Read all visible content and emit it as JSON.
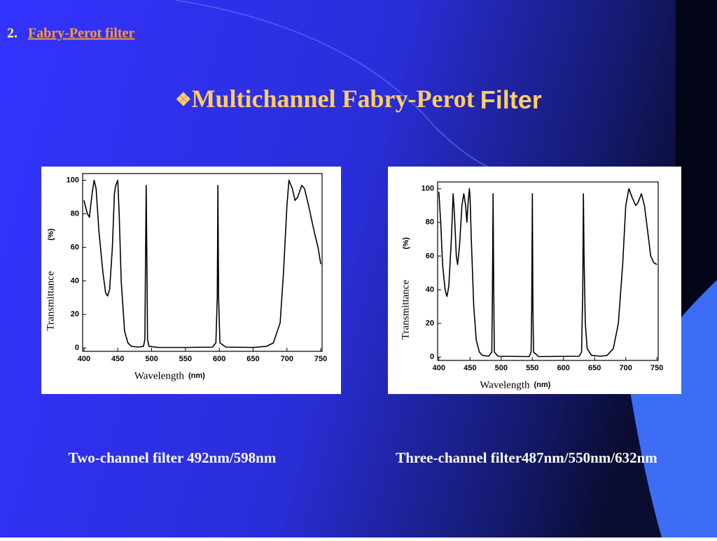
{
  "header": {
    "number": "2.",
    "link": "Fabry-Perot filter"
  },
  "title": {
    "marker": "❖",
    "main": "Multichannel Fabry-Perot",
    "tail": "Filter"
  },
  "captions": [
    "Two-channel filter 492nm/598nm",
    "Three-channel filter487nm/550nm/632nm"
  ],
  "chart_data": [
    {
      "type": "line",
      "xlabel": "Wavelength",
      "xunit": "(nm)",
      "ylabel": "Transmittance",
      "yunit": "(%)",
      "xlim": [
        398,
        752
      ],
      "ylim": [
        -2,
        104
      ],
      "xticks": [
        400,
        450,
        500,
        550,
        600,
        650,
        700,
        750
      ],
      "yticks": [
        0,
        20,
        40,
        60,
        80,
        100
      ],
      "x": [
        400,
        405,
        408,
        412,
        415,
        418,
        422,
        428,
        432,
        435,
        438,
        442,
        445,
        447,
        450,
        452,
        455,
        460,
        465,
        470,
        480,
        488,
        490,
        491,
        492,
        493,
        494,
        496,
        510,
        550,
        590,
        595,
        597,
        598,
        599,
        601,
        610,
        650,
        670,
        680,
        690,
        695,
        700,
        703,
        708,
        712,
        716,
        722,
        726,
        732,
        740,
        746,
        750
      ],
      "series": [
        {
          "color": "#000000",
          "values": [
            88,
            80,
            78,
            92,
            100,
            95,
            70,
            45,
            33,
            31,
            35,
            60,
            92,
            97,
            100,
            80,
            40,
            10,
            3,
            1,
            0.5,
            1,
            5,
            50,
            97,
            50,
            5,
            1,
            0.3,
            0.3,
            0.5,
            3,
            30,
            97,
            30,
            3,
            0.5,
            0.3,
            1,
            3,
            15,
            45,
            85,
            100,
            95,
            88,
            90,
            97,
            95,
            85,
            70,
            60,
            50
          ]
        }
      ]
    },
    {
      "type": "line",
      "xlabel": "Wavelength",
      "xunit": "(nm)",
      "ylabel": "Transmittance",
      "yunit": "(%)",
      "xlim": [
        398,
        752
      ],
      "ylim": [
        -2,
        104
      ],
      "xticks": [
        400,
        450,
        500,
        550,
        600,
        650,
        700,
        750
      ],
      "yticks": [
        0,
        20,
        40,
        60,
        80,
        100
      ],
      "x": [
        400,
        403,
        406,
        410,
        413,
        416,
        420,
        423,
        425,
        428,
        430,
        433,
        437,
        440,
        443,
        445,
        447,
        449,
        450,
        452,
        456,
        460,
        465,
        470,
        480,
        485,
        486,
        487,
        488,
        489,
        495,
        545,
        548,
        549,
        550,
        551,
        552,
        560,
        625,
        629,
        631,
        632,
        633,
        635,
        638,
        645,
        660,
        670,
        680,
        688,
        695,
        700,
        705,
        710,
        716,
        720,
        725,
        730,
        735,
        740,
        745,
        750
      ],
      "series": [
        {
          "color": "#000000",
          "values": [
            98,
            80,
            55,
            40,
            36,
            42,
            70,
            97,
            85,
            60,
            55,
            65,
            90,
            97,
            90,
            80,
            92,
            100,
            95,
            70,
            30,
            10,
            3,
            1,
            0.5,
            3,
            40,
            97,
            40,
            3,
            0.5,
            0.3,
            3,
            30,
            97,
            30,
            3,
            0.3,
            0.5,
            3,
            40,
            97,
            60,
            20,
            5,
            1,
            0.5,
            1,
            5,
            20,
            55,
            90,
            100,
            95,
            90,
            92,
            97,
            90,
            75,
            60,
            56,
            55
          ]
        }
      ]
    }
  ]
}
